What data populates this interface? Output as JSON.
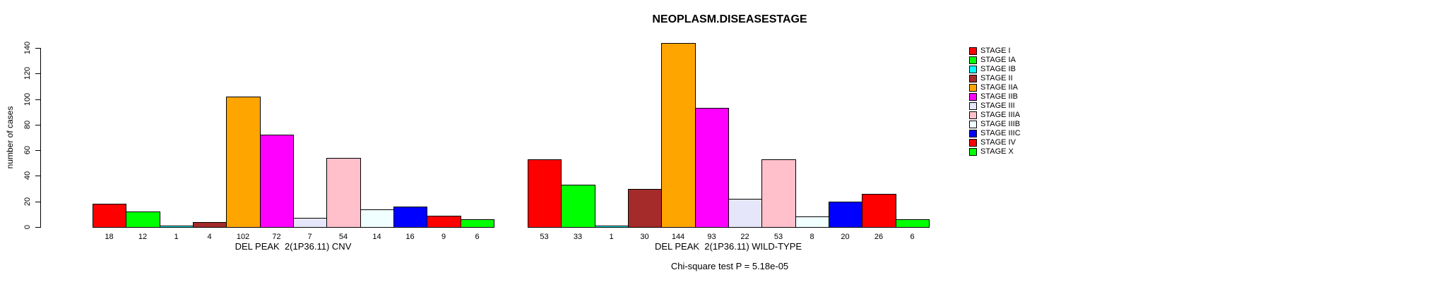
{
  "chart_data": {
    "type": "bar",
    "title": "NEOPLASM.DISEASESTAGE",
    "ylabel": "number of cases",
    "ylim": [
      0,
      140
    ],
    "yticks": [
      0,
      20,
      40,
      60,
      80,
      100,
      120,
      140
    ],
    "grid": false,
    "legend_position": "right",
    "bar_value_labels_shown": true,
    "legend": [
      {
        "label": "STAGE I",
        "color": "#FF0000"
      },
      {
        "label": "STAGE IA",
        "color": "#00FF00"
      },
      {
        "label": "STAGE IB",
        "color": "#00FFFF"
      },
      {
        "label": "STAGE II",
        "color": "#A52A2A"
      },
      {
        "label": "STAGE IIA",
        "color": "#FFA500"
      },
      {
        "label": "STAGE IIB",
        "color": "#FF00FF"
      },
      {
        "label": "STAGE III",
        "color": "#E6E6FA"
      },
      {
        "label": "STAGE IIIA",
        "color": "#FFC0CB"
      },
      {
        "label": "STAGE IIIB",
        "color": "#F0FFFF"
      },
      {
        "label": "STAGE IIIC",
        "color": "#0000FF"
      },
      {
        "label": "STAGE IV",
        "color": "#FF0000"
      },
      {
        "label": "STAGE X",
        "color": "#00FF00"
      }
    ],
    "groups": [
      {
        "label": "DEL PEAK  2(1P36.11) CNV",
        "values": [
          18,
          12,
          1,
          4,
          102,
          72,
          7,
          54,
          14,
          16,
          9,
          6
        ]
      },
      {
        "label": "DEL PEAK  2(1P36.11) WILD-TYPE",
        "values": [
          53,
          33,
          1,
          30,
          144,
          93,
          22,
          53,
          8,
          20,
          26,
          6
        ]
      }
    ],
    "footnote": "Chi-square test P = 5.18e-05"
  }
}
